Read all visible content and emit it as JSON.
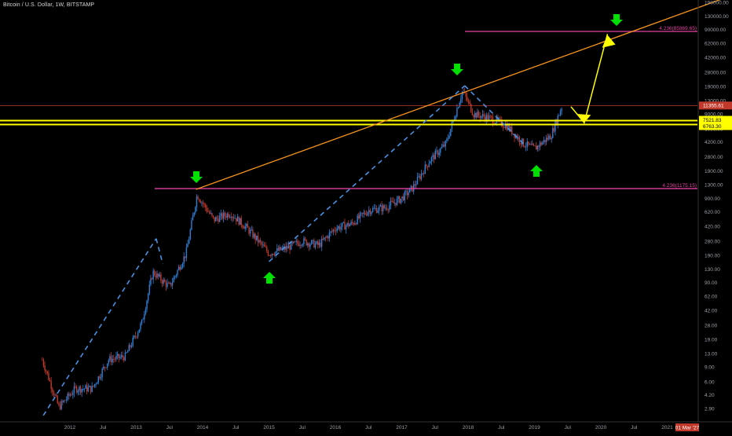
{
  "header": {
    "title": "Bitcoin / U.S. Dollar, 1W, BITSTAMP"
  },
  "price_axis": {
    "labels": [
      "190000.00",
      "130000.00",
      "90000.00",
      "62000.00",
      "42000.00",
      "28000.00",
      "19000.00",
      "13000.00",
      "9000.00",
      "6000.00",
      "4200.00",
      "2800.00",
      "1900.00",
      "1300.00",
      "900.00",
      "620.00",
      "420.00",
      "280.00",
      "190.00",
      "130.00",
      "90.00",
      "62.00",
      "42.00",
      "28.00",
      "19.00",
      "13.00",
      "9.00",
      "6.00",
      "4.20",
      "2.90"
    ]
  },
  "time_axis": {
    "labels": [
      "2012",
      "Jul",
      "2013",
      "Jul",
      "2014",
      "Jul",
      "2015",
      "Jul",
      "2016",
      "Jul",
      "2017",
      "Jul",
      "2018",
      "Jul",
      "2019",
      "Jul",
      "2020",
      "Jul",
      "2021"
    ],
    "date_badge": "01 Mar '27"
  },
  "price_tags": {
    "current": "11355.61",
    "upper_yellow": "7521.83",
    "lower_yellow": "6763.30"
  },
  "fib_labels": {
    "upper": "4.236(85869.65)",
    "lower": "4.236(1175.15)"
  },
  "colors": {
    "background": "#000000",
    "up_candle": "#2f7fd6",
    "down_candle": "#c0392b",
    "trendline": "#f7941d",
    "support": "#ffff00",
    "fib": "#e040a0",
    "arrow": "#00e000",
    "dashed": "#4a90e2"
  },
  "chart_data": {
    "type": "candlestick",
    "symbol": "Bitcoin / U.S. Dollar",
    "interval": "1W",
    "exchange": "BITSTAMP",
    "scale": "log",
    "x": [
      "2011-08",
      "2011-11",
      "2012-02",
      "2012-05",
      "2012-08",
      "2012-11",
      "2013-02",
      "2013-04",
      "2013-07",
      "2013-10",
      "2013-12",
      "2014-03",
      "2014-06",
      "2014-09",
      "2015-01",
      "2015-04",
      "2015-07",
      "2015-10",
      "2016-01",
      "2016-04",
      "2016-07",
      "2016-10",
      "2017-01",
      "2017-03",
      "2017-06",
      "2017-09",
      "2017-12",
      "2018-02",
      "2018-05",
      "2018-08",
      "2018-11",
      "2019-01",
      "2019-04",
      "2019-06"
    ],
    "close": [
      11,
      3,
      5,
      5,
      11,
      12,
      30,
      120,
      80,
      200,
      1000,
      500,
      600,
      400,
      200,
      230,
      280,
      250,
      400,
      450,
      650,
      700,
      900,
      1200,
      2500,
      4000,
      17000,
      9000,
      8000,
      6500,
      4000,
      3500,
      5000,
      11355.61
    ],
    "horizontal_levels": [
      {
        "price": 11355.61,
        "color": "#c0392b"
      },
      {
        "price": 7521.83,
        "color": "#ffff00"
      },
      {
        "price": 6763.3,
        "color": "#ffff00"
      },
      {
        "price": 85869.65,
        "color": "#e040a0"
      },
      {
        "price": 1175.15,
        "color": "#e040a0"
      }
    ],
    "ylim": [
      2.4,
      200000
    ],
    "xlim": [
      "2011-06",
      "2021-04"
    ],
    "grid": false
  }
}
